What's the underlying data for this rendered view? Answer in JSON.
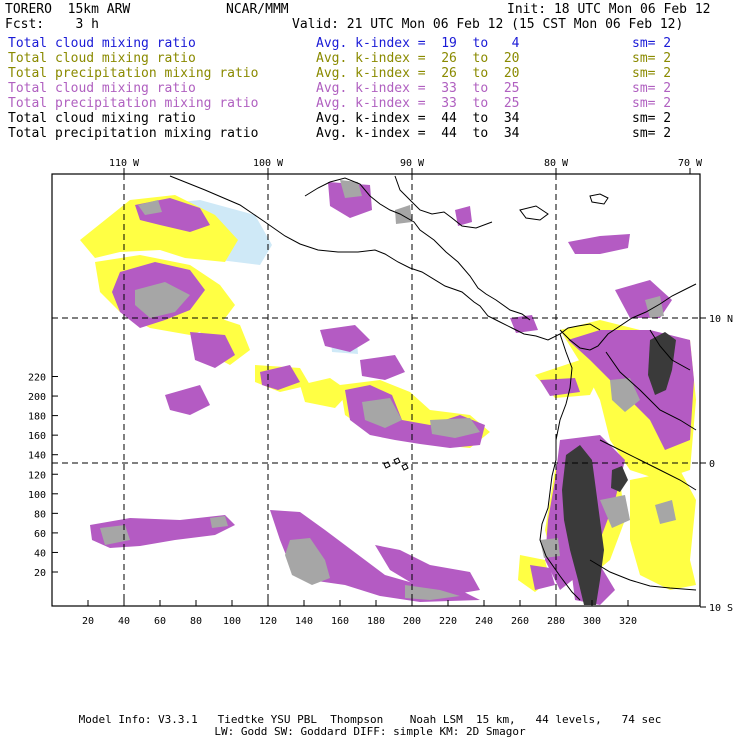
{
  "header": {
    "model": "TORERO  15km ARW",
    "org": "NCAR/MMM",
    "init": "Init: 18 UTC Mon 06 Feb 12",
    "fcst": "Fcst:    3 h",
    "valid": "Valid: 21 UTC Mon 06 Feb 12 (15 CST Mon 06 Feb 12)"
  },
  "legend": [
    {
      "field": "Total cloud mixing ratio",
      "index": "Avg. k-index =  19  to   4",
      "sm": "sm= 2",
      "color": "#1a1ad6"
    },
    {
      "field": "Total cloud mixing ratio",
      "index": "Avg. k-index =  26  to  20",
      "sm": "sm= 2",
      "color": "#8a8a00"
    },
    {
      "field": "Total precipitation mixing ratio",
      "index": "Avg. k-index =  26  to  20",
      "sm": "sm= 2",
      "color": "#8a8a00"
    },
    {
      "field": "Total cloud mixing ratio",
      "index": "Avg. k-index =  33  to  25",
      "sm": "sm= 2",
      "color": "#b060c0"
    },
    {
      "field": "Total precipitation mixing ratio",
      "index": "Avg. k-index =  33  to  25",
      "sm": "sm= 2",
      "color": "#b060c0"
    },
    {
      "field": "Total cloud mixing ratio",
      "index": "Avg. k-index =  44  to  34",
      "sm": "sm= 2",
      "color": "#000000"
    },
    {
      "field": "Total precipitation mixing ratio",
      "index": "Avg. k-index =  44  to  34",
      "sm": "sm= 2",
      "color": "#000000"
    }
  ],
  "map": {
    "lon_labels": [
      "110 W",
      "100 W",
      "90 W",
      "80 W",
      "70 W"
    ],
    "lat_labels": [
      "10 N",
      "0",
      "10 S"
    ],
    "x_ticks": [
      "20",
      "40",
      "60",
      "80",
      "100",
      "120",
      "140",
      "160",
      "180",
      "200",
      "220",
      "240",
      "260",
      "280",
      "300",
      "320"
    ],
    "y_ticks": [
      "20",
      "40",
      "60",
      "80",
      "100",
      "120",
      "140",
      "160",
      "180",
      "200",
      "220"
    ],
    "colors": {
      "cloud_low": "#cfe9f7",
      "cloud_mid": "#ffff44",
      "cloud_high": "#b45bc3",
      "precip": "#a6a6a6",
      "deep": "#3a3a3a",
      "frame": "#000000"
    }
  },
  "footer": {
    "line1": "Model Info: V3.3.1   Tiedtke YSU PBL  Thompson    Noah LSM  15 km,   44 levels,   74 sec",
    "line2": "LW: Godd SW: Goddard DIFF: simple KM: 2D Smagor"
  }
}
